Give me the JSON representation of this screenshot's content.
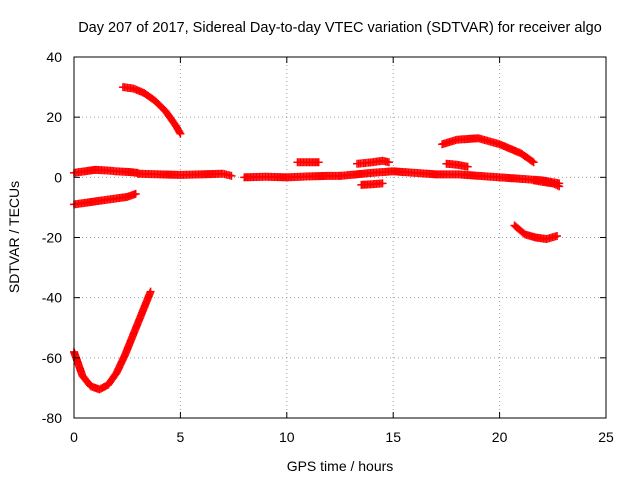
{
  "chart_data": {
    "type": "scatter",
    "title": "Day 207 of 2017, Sidereal Day-to-day VTEC variation (SDTVAR) for receiver algo",
    "xlabel": "GPS time / hours",
    "ylabel": "SDTVAR / TECUs",
    "xlim": [
      0,
      25
    ],
    "ylim": [
      -80,
      40
    ],
    "xticks": [
      0,
      5,
      10,
      15,
      20,
      25
    ],
    "yticks": [
      -80,
      -60,
      -40,
      -20,
      0,
      20,
      40
    ],
    "grid": true,
    "marker": "+",
    "color": "#ff0000",
    "series": [
      {
        "x": [
          0.0,
          0.5,
          1.0,
          1.5,
          2.0,
          2.5,
          3.0
        ],
        "y": [
          1.5,
          2.0,
          2.5,
          2.3,
          2.0,
          1.8,
          1.5
        ]
      },
      {
        "x": [
          3.0,
          4.0,
          5.0,
          6.0,
          7.0,
          7.4
        ],
        "y": [
          1.2,
          1.0,
          0.8,
          1.0,
          1.2,
          0.5
        ]
      },
      {
        "x": [
          8.0,
          9.0,
          10.0,
          11.0,
          12.0,
          12.5
        ],
        "y": [
          0.0,
          0.2,
          0.0,
          0.3,
          0.5,
          0.5
        ]
      },
      {
        "x": [
          12.5,
          13.0,
          14.0,
          15.0,
          16.0,
          17.0,
          18.0,
          19.0,
          20.0,
          21.0,
          22.0,
          22.8
        ],
        "y": [
          0.5,
          0.8,
          1.5,
          2.0,
          1.5,
          1.0,
          1.0,
          0.5,
          0.0,
          -0.5,
          -1.0,
          -2.0
        ]
      },
      {
        "x": [
          0.0,
          0.5,
          1.0,
          1.5,
          2.0,
          2.5,
          2.9
        ],
        "y": [
          -9.0,
          -8.5,
          -8.0,
          -7.5,
          -7.0,
          -6.5,
          -5.5
        ]
      },
      {
        "x": [
          0.0,
          0.4,
          0.8,
          1.2,
          1.6,
          2.0,
          2.4,
          2.8,
          3.2,
          3.6
        ],
        "y": [
          -58.0,
          -66.0,
          -69.5,
          -70.5,
          -69.0,
          -65.0,
          -59.0,
          -52.0,
          -45.0,
          -38.0
        ]
      },
      {
        "x": [
          2.3,
          2.8,
          3.3,
          3.8,
          4.3,
          4.8,
          5.0
        ],
        "y": [
          30.0,
          29.5,
          28.0,
          25.5,
          22.0,
          17.0,
          14.5
        ]
      },
      {
        "x": [
          10.5,
          11.0,
          11.5
        ],
        "y": [
          5.0,
          5.0,
          5.0
        ]
      },
      {
        "x": [
          13.3,
          14.0,
          14.5,
          14.8
        ],
        "y": [
          4.5,
          5.0,
          5.5,
          5.0
        ]
      },
      {
        "x": [
          13.5,
          14.0,
          14.5
        ],
        "y": [
          -2.5,
          -2.3,
          -2.0
        ]
      },
      {
        "x": [
          17.3,
          18.0,
          19.0,
          20.0,
          21.0,
          21.6
        ],
        "y": [
          11.0,
          12.5,
          13.0,
          11.0,
          8.0,
          5.0
        ]
      },
      {
        "x": [
          17.5,
          18.0,
          18.5
        ],
        "y": [
          4.5,
          4.2,
          3.5
        ]
      },
      {
        "x": [
          20.7,
          21.2,
          21.7,
          22.2,
          22.7
        ],
        "y": [
          -16.0,
          -19.0,
          -20.0,
          -20.5,
          -19.5
        ]
      },
      {
        "x": [
          21.6,
          22.0,
          22.5,
          22.8
        ],
        "y": [
          -1.0,
          -1.5,
          -2.0,
          -3.0
        ]
      }
    ]
  }
}
